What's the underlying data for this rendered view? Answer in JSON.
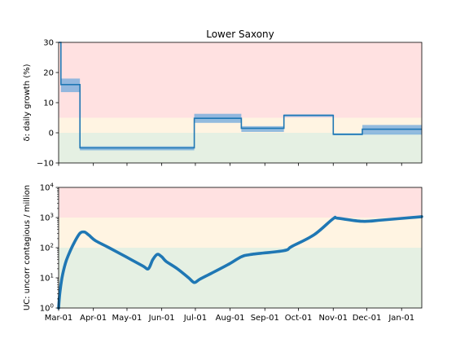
{
  "chart_data": [
    {
      "type": "line",
      "title": "Lower Saxony",
      "ylabel": "δ: daily growth (%)",
      "ylim": [
        -10,
        30
      ],
      "yticks": [
        -10,
        0,
        10,
        20,
        30
      ],
      "ytick_labels": [
        "−10",
        "0",
        "10",
        "20",
        "30"
      ],
      "xlim": [
        "2020-03-01",
        "2021-01-19"
      ],
      "bands": [
        {
          "from": 5,
          "to": 30,
          "color": "#ffe1e1"
        },
        {
          "from": 0,
          "to": 5,
          "color": "#fff4e2"
        },
        {
          "from": -10,
          "to": 0,
          "color": "#e5f0e3"
        }
      ],
      "series": [
        {
          "segments": [
            {
              "start": "2020-03-01",
              "end": "2020-03-03",
              "value": 30,
              "lo": 30,
              "hi": 30
            },
            {
              "start": "2020-03-03",
              "end": "2020-03-20",
              "value": 16,
              "lo": 13.5,
              "hi": 18
            },
            {
              "start": "2020-03-20",
              "end": "2020-06-30",
              "value": -5,
              "lo": -5.8,
              "hi": -4.5
            },
            {
              "start": "2020-06-30",
              "end": "2020-08-11",
              "value": 4.8,
              "lo": 3.3,
              "hi": 6.3
            },
            {
              "start": "2020-08-11",
              "end": "2020-09-18",
              "value": 1.5,
              "lo": 0.3,
              "hi": 2.2
            },
            {
              "start": "2020-09-18",
              "end": "2020-11-01",
              "value": 5.8,
              "lo": 5.3,
              "hi": 6.1
            },
            {
              "start": "2020-11-01",
              "end": "2020-11-27",
              "value": -0.5,
              "lo": -0.8,
              "hi": -0.2
            },
            {
              "start": "2020-11-27",
              "end": "2021-01-19",
              "value": 1.2,
              "lo": -0.6,
              "hi": 2.6
            }
          ],
          "color": "#1f77b4",
          "band_color": "#6fa8dc"
        }
      ]
    },
    {
      "type": "line",
      "ylabel": "UC: uncorr contagious / million",
      "yscale": "log",
      "ylim": [
        1,
        10000
      ],
      "yticks": [
        1,
        10,
        100,
        1000,
        10000
      ],
      "ytick_labels": [
        {
          "base": "10",
          "exp": "0"
        },
        {
          "base": "10",
          "exp": "1"
        },
        {
          "base": "10",
          "exp": "2"
        },
        {
          "base": "10",
          "exp": "3"
        },
        {
          "base": "10",
          "exp": "4"
        }
      ],
      "xlim": [
        "2020-03-01",
        "2021-01-19"
      ],
      "xticks": [
        "2020-03-01",
        "2020-04-01",
        "2020-05-01",
        "2020-06-01",
        "2020-07-01",
        "2020-08-01",
        "2020-09-01",
        "2020-10-01",
        "2020-11-01",
        "2020-12-01",
        "2021-01-01"
      ],
      "xtick_labels": [
        "Mar-01",
        "Apr-01",
        "May-01",
        "Jun-01",
        "Jul-01",
        "Aug-01",
        "Sep-01",
        "Oct-01",
        "Nov-01",
        "Dec-01",
        "Jan-01"
      ],
      "bands": [
        {
          "from": 1000,
          "to": 10000,
          "color": "#ffe1e1"
        },
        {
          "from": 100,
          "to": 1000,
          "color": "#fff4e2"
        },
        {
          "from": 1,
          "to": 100,
          "color": "#e5f0e3"
        }
      ],
      "series": [
        {
          "points": [
            [
              "2020-03-01",
              1
            ],
            [
              "2020-03-02",
              3
            ],
            [
              "2020-03-04",
              10
            ],
            [
              "2020-03-07",
              30
            ],
            [
              "2020-03-10",
              60
            ],
            [
              "2020-03-15",
              150
            ],
            [
              "2020-03-20",
              300
            ],
            [
              "2020-03-24",
              330
            ],
            [
              "2020-03-28",
              260
            ],
            [
              "2020-04-03",
              170
            ],
            [
              "2020-04-15",
              100
            ],
            [
              "2020-04-30",
              50
            ],
            [
              "2020-05-15",
              25
            ],
            [
              "2020-05-20",
              20
            ],
            [
              "2020-05-24",
              40
            ],
            [
              "2020-05-28",
              60
            ],
            [
              "2020-06-01",
              50
            ],
            [
              "2020-06-05",
              35
            ],
            [
              "2020-06-15",
              20
            ],
            [
              "2020-06-25",
              10
            ],
            [
              "2020-06-30",
              7
            ],
            [
              "2020-07-05",
              9
            ],
            [
              "2020-07-15",
              14
            ],
            [
              "2020-08-01",
              30
            ],
            [
              "2020-08-11",
              50
            ],
            [
              "2020-08-20",
              60
            ],
            [
              "2020-09-18",
              80
            ],
            [
              "2020-09-25",
              110
            ],
            [
              "2020-10-15",
              270
            ],
            [
              "2020-11-01",
              920
            ],
            [
              "2020-11-05",
              950
            ],
            [
              "2020-11-27",
              750
            ],
            [
              "2020-12-15",
              830
            ],
            [
              "2021-01-19",
              1070
            ]
          ],
          "color": "#1f77b4"
        }
      ]
    }
  ]
}
